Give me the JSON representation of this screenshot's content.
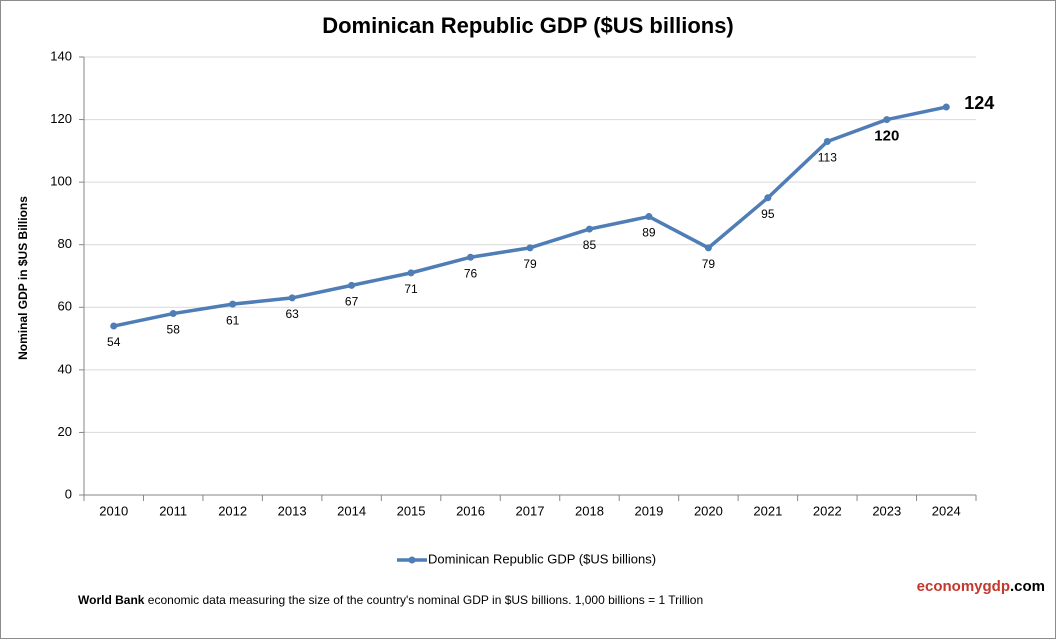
{
  "chart_data": {
    "type": "line",
    "title": "Dominican Republic GDP ($US billions)",
    "y_label": "Nominal GDP in $US  Billions",
    "categories": [
      "2010",
      "2011",
      "2012",
      "2013",
      "2014",
      "2015",
      "2016",
      "2017",
      "2018",
      "2019",
      "2020",
      "2021",
      "2022",
      "2023",
      "2024"
    ],
    "series": [
      {
        "name": "Dominican Republic GDP ($US billions)",
        "color": "#4f7db5",
        "values": [
          54,
          58,
          61,
          63,
          67,
          71,
          76,
          79,
          85,
          89,
          79,
          95,
          113,
          120,
          124
        ]
      }
    ],
    "ylim": [
      0,
      140
    ],
    "yticks": [
      0,
      20,
      40,
      60,
      80,
      100,
      120,
      140
    ],
    "grid": true,
    "legend": "bottom"
  },
  "footer": {
    "source_bold": "World Bank",
    "source_text": "economic data  measuring the size of the country's nominal GDP in $US billions. 1,000 billions = 1 Trillion",
    "brand_name": "economygdp",
    "brand_tld": ".com"
  }
}
